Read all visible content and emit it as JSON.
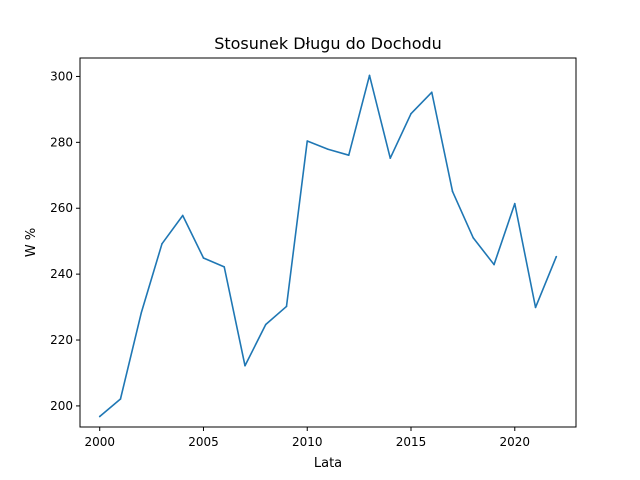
{
  "chart_data": {
    "type": "line",
    "title": "Stosunek Długu do Dochodu",
    "xlabel": "Lata",
    "ylabel": "W %",
    "x": [
      2000,
      2001,
      2002,
      2003,
      2004,
      2005,
      2006,
      2007,
      2008,
      2009,
      2010,
      2011,
      2012,
      2013,
      2014,
      2015,
      2016,
      2017,
      2018,
      2019,
      2020,
      2021,
      2022
    ],
    "series": [
      {
        "values": [
          196.8,
          202.1,
          228.2,
          249.2,
          257.8,
          244.9,
          242.2,
          212.2,
          224.7,
          230.2,
          280.4,
          277.9,
          276.1,
          300.3,
          275.2,
          288.7,
          295.2,
          265.1,
          251.0,
          242.9,
          261.4,
          229.9,
          245.3
        ],
        "color": "#1f77b4"
      }
    ],
    "xlim": [
      1999.05,
      2022.95
    ],
    "ylim": [
      193.6,
      305.6
    ],
    "xticks": [
      2000,
      2005,
      2010,
      2015,
      2020
    ],
    "yticks": [
      200,
      220,
      240,
      260,
      280,
      300
    ],
    "grid": false,
    "legend": "none"
  }
}
